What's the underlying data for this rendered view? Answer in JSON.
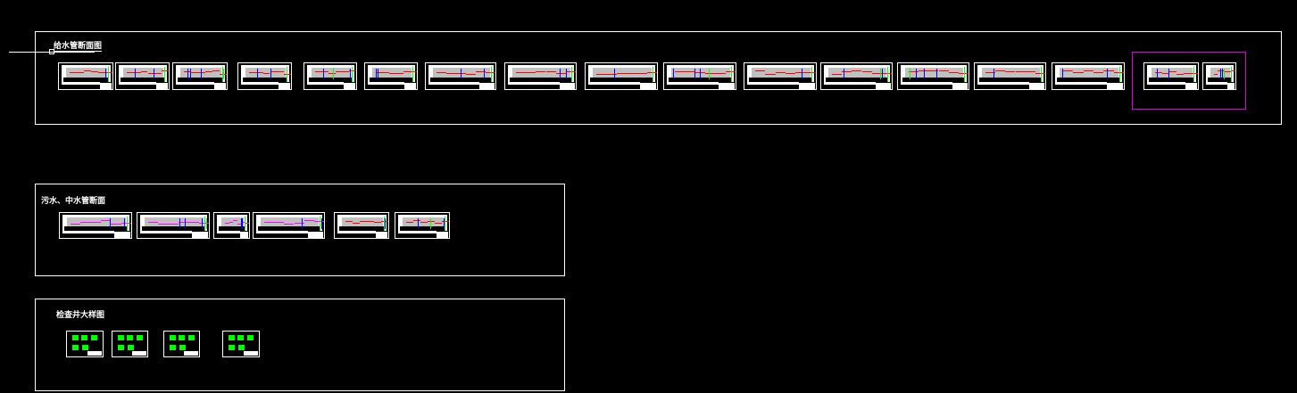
{
  "groups": [
    {
      "title": "给水管断面图",
      "sheet_count": 17,
      "sheet_type": "profile"
    },
    {
      "title": "污水、中水管断面",
      "sheet_count": 6,
      "sheet_type": "profile"
    },
    {
      "title": "检查井大样图",
      "sheet_count": 4,
      "sheet_type": "manhole-detail"
    }
  ],
  "colors": {
    "background": "#000000",
    "frame": "#ffffff",
    "selection": "#e000e0",
    "ground_line": "#ff0000",
    "pipe_line": "#ff00ff",
    "marker_blue": "#0000ff",
    "marker_green": "#00ff00",
    "marker_cyan": "#00ffff"
  }
}
